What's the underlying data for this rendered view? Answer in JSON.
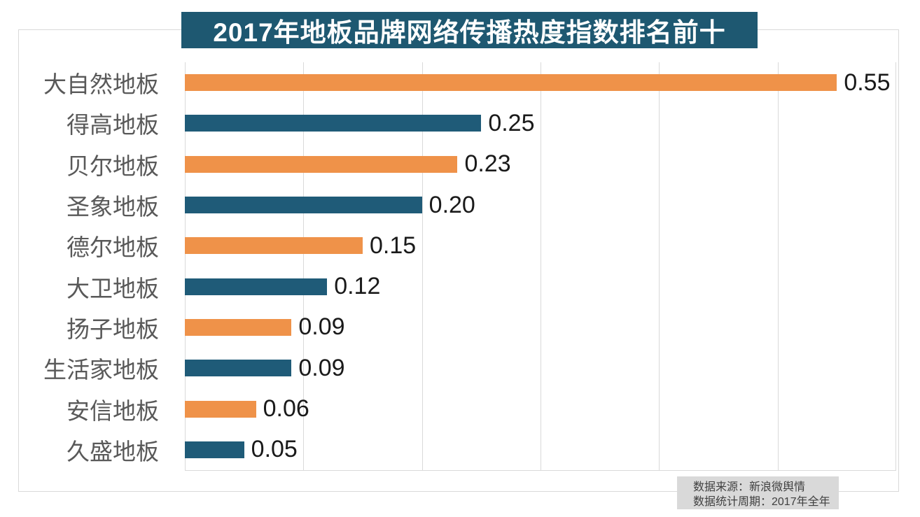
{
  "chart_data": {
    "type": "bar",
    "orientation": "horizontal",
    "title": "2017年地板品牌网络传播热度指数排名前十",
    "categories": [
      "大自然地板",
      "得高地板",
      "贝尔地板",
      "圣象地板",
      "德尔地板",
      "大卫地板",
      "扬子地板",
      "生活家地板",
      "安信地板",
      "久盛地板"
    ],
    "values": [
      0.55,
      0.25,
      0.23,
      0.2,
      0.15,
      0.12,
      0.09,
      0.09,
      0.06,
      0.05
    ],
    "value_labels": [
      "0.55",
      "0.25",
      "0.23",
      "0.20",
      "0.15",
      "0.12",
      "0.09",
      "0.09",
      "0.06",
      "0.05"
    ],
    "xlabel": "",
    "ylabel": "",
    "xlim": [
      0,
      0.6
    ],
    "grid": true,
    "gridline_interval": 0.1,
    "legend": "none",
    "bar_colors_alternate": [
      "#ef9249",
      "#1f5b78"
    ]
  },
  "source_note": {
    "line1": "数据来源：新浪微舆情",
    "line2": "数据统计周期：2017年全年"
  },
  "colors": {
    "title_bg": "#1e5871",
    "title_text": "#ffffff",
    "bar_orange": "#ef9249",
    "bar_blue": "#1f5b78",
    "gridline": "#d9d9d9",
    "frame_border": "#d9d9d9",
    "category_label": "#595959",
    "value_label": "#1a1a1a",
    "note_bg": "#d9d9d9",
    "note_text": "#404040"
  }
}
